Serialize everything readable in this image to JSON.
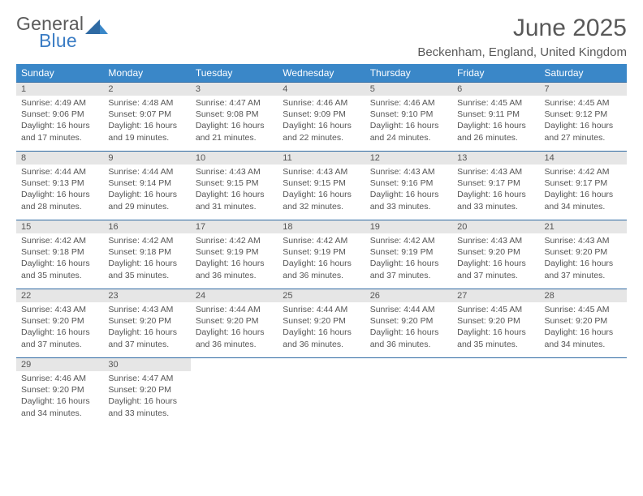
{
  "logo": {
    "general": "General",
    "blue": "Blue"
  },
  "title": "June 2025",
  "subtitle": "Beckenham, England, United Kingdom",
  "colors": {
    "header_bg": "#3a87c8",
    "header_text": "#ffffff",
    "daynum_bg": "#e6e6e6",
    "text": "#555555",
    "rule": "#2f6aa3",
    "logo_gray": "#5a5a5a",
    "logo_blue": "#3a7cc4"
  },
  "weekdays": [
    "Sunday",
    "Monday",
    "Tuesday",
    "Wednesday",
    "Thursday",
    "Friday",
    "Saturday"
  ],
  "days": [
    {
      "n": 1,
      "sunrise": "4:49 AM",
      "sunset": "9:06 PM",
      "daylight": "16 hours and 17 minutes."
    },
    {
      "n": 2,
      "sunrise": "4:48 AM",
      "sunset": "9:07 PM",
      "daylight": "16 hours and 19 minutes."
    },
    {
      "n": 3,
      "sunrise": "4:47 AM",
      "sunset": "9:08 PM",
      "daylight": "16 hours and 21 minutes."
    },
    {
      "n": 4,
      "sunrise": "4:46 AM",
      "sunset": "9:09 PM",
      "daylight": "16 hours and 22 minutes."
    },
    {
      "n": 5,
      "sunrise": "4:46 AM",
      "sunset": "9:10 PM",
      "daylight": "16 hours and 24 minutes."
    },
    {
      "n": 6,
      "sunrise": "4:45 AM",
      "sunset": "9:11 PM",
      "daylight": "16 hours and 26 minutes."
    },
    {
      "n": 7,
      "sunrise": "4:45 AM",
      "sunset": "9:12 PM",
      "daylight": "16 hours and 27 minutes."
    },
    {
      "n": 8,
      "sunrise": "4:44 AM",
      "sunset": "9:13 PM",
      "daylight": "16 hours and 28 minutes."
    },
    {
      "n": 9,
      "sunrise": "4:44 AM",
      "sunset": "9:14 PM",
      "daylight": "16 hours and 29 minutes."
    },
    {
      "n": 10,
      "sunrise": "4:43 AM",
      "sunset": "9:15 PM",
      "daylight": "16 hours and 31 minutes."
    },
    {
      "n": 11,
      "sunrise": "4:43 AM",
      "sunset": "9:15 PM",
      "daylight": "16 hours and 32 minutes."
    },
    {
      "n": 12,
      "sunrise": "4:43 AM",
      "sunset": "9:16 PM",
      "daylight": "16 hours and 33 minutes."
    },
    {
      "n": 13,
      "sunrise": "4:43 AM",
      "sunset": "9:17 PM",
      "daylight": "16 hours and 33 minutes."
    },
    {
      "n": 14,
      "sunrise": "4:42 AM",
      "sunset": "9:17 PM",
      "daylight": "16 hours and 34 minutes."
    },
    {
      "n": 15,
      "sunrise": "4:42 AM",
      "sunset": "9:18 PM",
      "daylight": "16 hours and 35 minutes."
    },
    {
      "n": 16,
      "sunrise": "4:42 AM",
      "sunset": "9:18 PM",
      "daylight": "16 hours and 35 minutes."
    },
    {
      "n": 17,
      "sunrise": "4:42 AM",
      "sunset": "9:19 PM",
      "daylight": "16 hours and 36 minutes."
    },
    {
      "n": 18,
      "sunrise": "4:42 AM",
      "sunset": "9:19 PM",
      "daylight": "16 hours and 36 minutes."
    },
    {
      "n": 19,
      "sunrise": "4:42 AM",
      "sunset": "9:19 PM",
      "daylight": "16 hours and 37 minutes."
    },
    {
      "n": 20,
      "sunrise": "4:43 AM",
      "sunset": "9:20 PM",
      "daylight": "16 hours and 37 minutes."
    },
    {
      "n": 21,
      "sunrise": "4:43 AM",
      "sunset": "9:20 PM",
      "daylight": "16 hours and 37 minutes."
    },
    {
      "n": 22,
      "sunrise": "4:43 AM",
      "sunset": "9:20 PM",
      "daylight": "16 hours and 37 minutes."
    },
    {
      "n": 23,
      "sunrise": "4:43 AM",
      "sunset": "9:20 PM",
      "daylight": "16 hours and 37 minutes."
    },
    {
      "n": 24,
      "sunrise": "4:44 AM",
      "sunset": "9:20 PM",
      "daylight": "16 hours and 36 minutes."
    },
    {
      "n": 25,
      "sunrise": "4:44 AM",
      "sunset": "9:20 PM",
      "daylight": "16 hours and 36 minutes."
    },
    {
      "n": 26,
      "sunrise": "4:44 AM",
      "sunset": "9:20 PM",
      "daylight": "16 hours and 36 minutes."
    },
    {
      "n": 27,
      "sunrise": "4:45 AM",
      "sunset": "9:20 PM",
      "daylight": "16 hours and 35 minutes."
    },
    {
      "n": 28,
      "sunrise": "4:45 AM",
      "sunset": "9:20 PM",
      "daylight": "16 hours and 34 minutes."
    },
    {
      "n": 29,
      "sunrise": "4:46 AM",
      "sunset": "9:20 PM",
      "daylight": "16 hours and 34 minutes."
    },
    {
      "n": 30,
      "sunrise": "4:47 AM",
      "sunset": "9:20 PM",
      "daylight": "16 hours and 33 minutes."
    }
  ],
  "labels": {
    "sunrise": "Sunrise:",
    "sunset": "Sunset:",
    "daylight": "Daylight:"
  }
}
